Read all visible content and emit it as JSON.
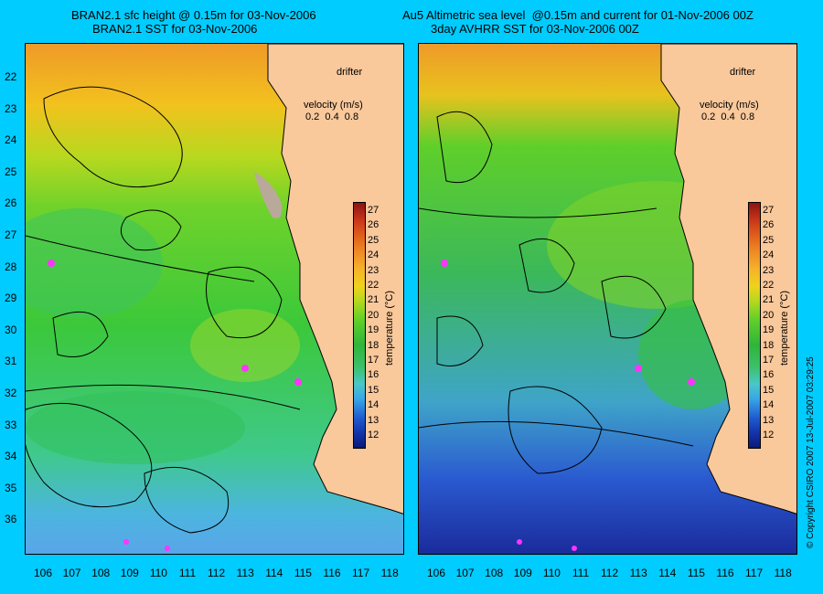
{
  "titles": {
    "left_line1": "BRAN2.1 sfc height @ 0.15m for 03-Nov-2006",
    "left_line2": "BRAN2.1 SST for 03-Nov-2006",
    "right_line1": "Au5 Altimetric sea level  @0.15m and current for 01-Nov-2006 00Z",
    "right_line2": "3day AVHRR SST for 03-Nov-2006 00Z"
  },
  "y_axis": [
    "22",
    "23",
    "24",
    "25",
    "26",
    "27",
    "28",
    "29",
    "30",
    "31",
    "32",
    "33",
    "34",
    "35",
    "36"
  ],
  "x_axis": [
    "106",
    "107",
    "108",
    "109",
    "110",
    "111",
    "112",
    "113",
    "114",
    "115",
    "116",
    "117",
    "118"
  ],
  "legend": {
    "drifter": "drifter",
    "velocity_title": "velocity (m/s)",
    "velocity_scale": "0.2  0.4  0.8",
    "velocity_values": [
      0.2,
      0.4,
      0.8
    ]
  },
  "colorbar": {
    "ticks": [
      "27",
      "26",
      "25",
      "24",
      "23",
      "22",
      "21",
      "20",
      "19",
      "18",
      "17",
      "16",
      "15",
      "14",
      "13",
      "12"
    ],
    "label": "temperature (°C)",
    "range": [
      11.5,
      27.5
    ]
  },
  "copyright": "© Copyright CSIRO 2007   13-Jul-2007 03:29:25",
  "colors": {
    "background": "#00ccff",
    "land": "#f9c89b",
    "drifter": "#ff33ff",
    "contour": "#000000"
  }
}
